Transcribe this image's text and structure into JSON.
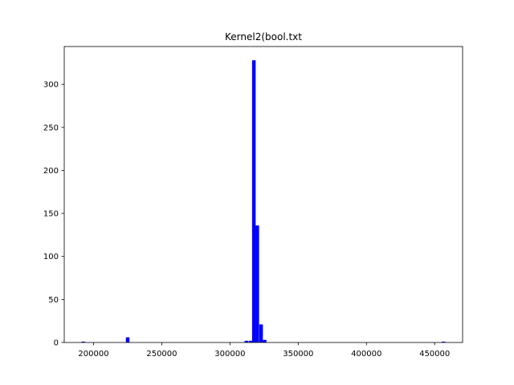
{
  "chart_data": {
    "type": "bar",
    "title": "Kernel2(bool.txt",
    "xlabel": "",
    "ylabel": "",
    "xlim": [
      178500,
      470500
    ],
    "ylim": [
      0,
      344
    ],
    "bin_width": 2650,
    "bar_color": "#0000ff",
    "grid": false,
    "x_ticks": [
      200000,
      250000,
      300000,
      350000,
      400000,
      450000
    ],
    "y_ticks": [
      0,
      50,
      100,
      150,
      200,
      250,
      300
    ],
    "bins": [
      {
        "x": 192500,
        "value": 1
      },
      {
        "x": 225000,
        "value": 6
      },
      {
        "x": 312000,
        "value": 2
      },
      {
        "x": 315000,
        "value": 2
      },
      {
        "x": 317500,
        "value": 328
      },
      {
        "x": 320000,
        "value": 136
      },
      {
        "x": 322800,
        "value": 21
      },
      {
        "x": 325400,
        "value": 3
      },
      {
        "x": 456500,
        "value": 1
      }
    ]
  }
}
